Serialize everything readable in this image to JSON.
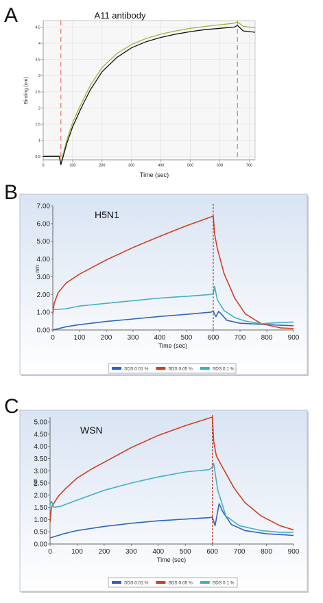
{
  "panels": [
    {
      "letter": "A",
      "chart_data": {
        "type": "line",
        "title": "A11 antibody",
        "xlabel": "Time (sec)",
        "ylabel": "Binding (nm)",
        "xlim": [
          0,
          720
        ],
        "ylim": [
          0.4,
          4.7
        ],
        "xticks": [
          0,
          100,
          200,
          300,
          400,
          500,
          600,
          700
        ],
        "yticks": [
          0.5,
          1,
          1.5,
          2,
          2.5,
          3,
          3.5,
          4,
          4.5
        ],
        "ytick_labels": [
          "0.5",
          "1",
          "1.5",
          "2",
          "2.5",
          "3",
          "3.5",
          "4",
          "4.5"
        ],
        "grid": true,
        "vlines": [
          60,
          660
        ],
        "colors": {
          "vline": "#f08080",
          "black_series": "#111111",
          "olive_series": "#a8b040"
        },
        "series": [
          {
            "color": "#a8b040",
            "x": [
              0,
              55,
              60,
              80,
              100,
              130,
              160,
              200,
              250,
              300,
              350,
              400,
              450,
              500,
              550,
              600,
              650,
              660,
              680,
              720
            ],
            "values": [
              0.52,
              0.52,
              0.3,
              1.0,
              1.55,
              2.15,
              2.7,
              3.25,
              3.68,
              3.96,
              4.15,
              4.28,
              4.38,
              4.46,
              4.52,
              4.57,
              4.62,
              4.66,
              4.52,
              4.48
            ]
          },
          {
            "color": "#111111",
            "x": [
              0,
              55,
              60,
              80,
              100,
              130,
              160,
              200,
              250,
              300,
              350,
              400,
              450,
              500,
              550,
              600,
              650,
              660,
              680,
              720
            ],
            "values": [
              0.5,
              0.5,
              0.25,
              0.9,
              1.42,
              2.02,
              2.56,
              3.12,
              3.56,
              3.86,
              4.05,
              4.18,
              4.28,
              4.36,
              4.42,
              4.46,
              4.5,
              4.55,
              4.38,
              4.34
            ]
          }
        ]
      }
    },
    {
      "letter": "B",
      "chart_data": {
        "type": "line",
        "title": "H5N1",
        "xlabel": "Time (sec)",
        "ylabel": "nm",
        "xlim": [
          0,
          900
        ],
        "ylim": [
          0,
          7
        ],
        "xticks": [
          0,
          100,
          200,
          300,
          400,
          500,
          600,
          700,
          800,
          900
        ],
        "yticks": [
          0,
          1,
          2,
          3,
          4,
          5,
          6,
          7
        ],
        "ytick_labels": [
          "0.00",
          "1.00",
          "2.00",
          "3.00",
          "4.00",
          "5.00",
          "6.00",
          "7.00"
        ],
        "grid": false,
        "vlines": [
          600
        ],
        "series": [
          {
            "name": "SDS  0.01 %",
            "color": "#2e64c0",
            "x": [
              0,
              50,
              100,
              200,
              300,
              400,
              500,
              590,
              600,
              610,
              615,
              620,
              630,
              650,
              700,
              800,
              900
            ],
            "values": [
              0.0,
              0.18,
              0.3,
              0.48,
              0.62,
              0.76,
              0.88,
              1.0,
              1.05,
              0.75,
              0.9,
              1.05,
              0.9,
              0.55,
              0.38,
              0.3,
              0.24
            ]
          },
          {
            "name": "SDS  0.05 %",
            "color": "#d04020",
            "x": [
              0,
              5,
              20,
              50,
              100,
              200,
              300,
              400,
              500,
              600,
              605,
              615,
              640,
              680,
              720,
              780,
              850,
              900
            ],
            "values": [
              0.9,
              1.5,
              2.1,
              2.65,
              3.15,
              3.95,
              4.65,
              5.28,
              5.88,
              6.42,
              5.4,
              4.6,
              3.2,
              1.8,
              0.9,
              0.35,
              0.12,
              0.08
            ]
          },
          {
            "name": "SDS  0.1 %",
            "color": "#40b0c8",
            "x": [
              0,
              10,
              50,
              100,
              200,
              300,
              400,
              500,
              590,
              600,
              605,
              615,
              640,
              680,
              720,
              780,
              850,
              900
            ],
            "values": [
              1.2,
              1.15,
              1.2,
              1.35,
              1.5,
              1.65,
              1.8,
              1.9,
              2.0,
              2.05,
              2.45,
              1.7,
              1.1,
              0.7,
              0.5,
              0.35,
              0.42,
              0.45
            ]
          }
        ]
      }
    },
    {
      "letter": "C",
      "chart_data": {
        "type": "line",
        "title": "WSN",
        "xlabel": "Time (sec)",
        "ylabel": "nm",
        "xlim": [
          0,
          900
        ],
        "ylim": [
          0,
          5.2
        ],
        "xticks": [
          0,
          100,
          200,
          300,
          400,
          500,
          600,
          700,
          800,
          900
        ],
        "yticks": [
          0,
          0.5,
          1,
          1.5,
          2,
          2.5,
          3,
          3.5,
          4,
          4.5,
          5
        ],
        "ytick_labels": [
          "0.00",
          "0.50",
          "1.00",
          "1.50",
          "2.00",
          "2.50",
          "3.00",
          "3.50",
          "4.00",
          "4.50",
          "5.00"
        ],
        "grid": false,
        "vlines": [
          600
        ],
        "series": [
          {
            "name": "SDS  0.01 %",
            "color": "#2e64c0",
            "x": [
              0,
              50,
              100,
              200,
              300,
              400,
              500,
              590,
              600,
              610,
              625,
              640,
              670,
              720,
              800,
              900
            ],
            "values": [
              0.25,
              0.42,
              0.55,
              0.72,
              0.85,
              0.95,
              1.02,
              1.08,
              1.1,
              0.75,
              1.65,
              1.3,
              0.8,
              0.55,
              0.42,
              0.35
            ]
          },
          {
            "name": "SDS  0.05 %",
            "color": "#d04020",
            "x": [
              0,
              5,
              30,
              60,
              100,
              150,
              200,
              300,
              400,
              500,
              600,
              605,
              615,
              640,
              680,
              720,
              780,
              850,
              900
            ],
            "values": [
              0.9,
              1.5,
              1.95,
              2.3,
              2.7,
              3.05,
              3.35,
              3.95,
              4.45,
              4.85,
              5.2,
              4.2,
              3.6,
              3.1,
              2.3,
              1.7,
              1.15,
              0.75,
              0.58
            ]
          },
          {
            "name": "SDS  0.1 %",
            "color": "#40b0c8",
            "x": [
              0,
              5,
              15,
              40,
              100,
              200,
              300,
              400,
              500,
              590,
              600,
              605,
              620,
              650,
              700,
              780,
              850,
              900
            ],
            "values": [
              1.6,
              1.75,
              1.5,
              1.55,
              1.8,
              2.2,
              2.5,
              2.75,
              2.95,
              3.05,
              3.15,
              3.3,
              2.2,
              1.15,
              0.75,
              0.55,
              0.48,
              0.48
            ]
          }
        ]
      }
    }
  ]
}
